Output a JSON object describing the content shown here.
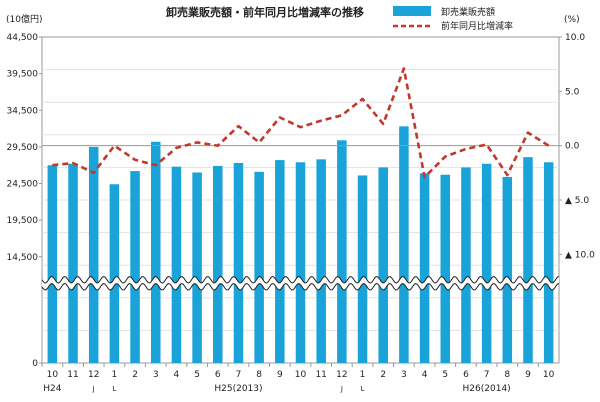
{
  "chart_data": {
    "type": "bar+line",
    "title": "卸売業販売額・前年同月比増減率の推移",
    "left_unit": "(10億円)",
    "right_unit": "(%)",
    "left_axis": {
      "ylim": [
        0,
        44500
      ],
      "ticks": [
        "0",
        "14,500",
        "19,500",
        "24,500",
        "29,500",
        "34,500",
        "39,500",
        "44,500"
      ]
    },
    "right_axis": {
      "ylim": [
        -20,
        10
      ],
      "ticks": [
        "10.0",
        "5.0",
        "0.0",
        "▲ 5.0",
        "▲ 10.0"
      ]
    },
    "categories": [
      "10",
      "11",
      "12",
      "1",
      "2",
      "3",
      "4",
      "5",
      "6",
      "7",
      "8",
      "9",
      "10",
      "11",
      "12",
      "1",
      "2",
      "3",
      "4",
      "5",
      "6",
      "7",
      "8",
      "9",
      "10"
    ],
    "bottom_labels": [
      {
        "text": "H24",
        "index": 0
      },
      {
        "text": "J",
        "index": 2
      },
      {
        "text": "L",
        "index": 3
      },
      {
        "text": "H25(2013)",
        "index": 9
      },
      {
        "text": "J",
        "index": 14
      },
      {
        "text": "L",
        "index": 15
      },
      {
        "text": "H26(2014)",
        "index": 21
      }
    ],
    "series": [
      {
        "name": "卸売業販売額",
        "type": "bar",
        "axis": "left",
        "color": "#1aa3d9",
        "values": [
          27000,
          27200,
          29500,
          24400,
          26200,
          30200,
          26800,
          26000,
          26900,
          27300,
          26100,
          27700,
          27400,
          27800,
          30400,
          25600,
          26700,
          32300,
          25900,
          25700,
          26700,
          27200,
          25400,
          28100,
          27400
        ]
      },
      {
        "name": "前年同月比増減率",
        "type": "line",
        "axis": "right",
        "color": "#c0392b",
        "values": [
          -1.8,
          -1.6,
          -2.5,
          0.0,
          -1.3,
          -1.8,
          -0.2,
          0.3,
          0.0,
          1.8,
          0.3,
          2.6,
          1.7,
          2.3,
          2.8,
          4.3,
          2.0,
          7.1,
          -2.9,
          -1.0,
          -0.3,
          0.1,
          -2.7,
          1.2,
          0.0
        ]
      }
    ],
    "legend": "top-right",
    "grid": true
  }
}
